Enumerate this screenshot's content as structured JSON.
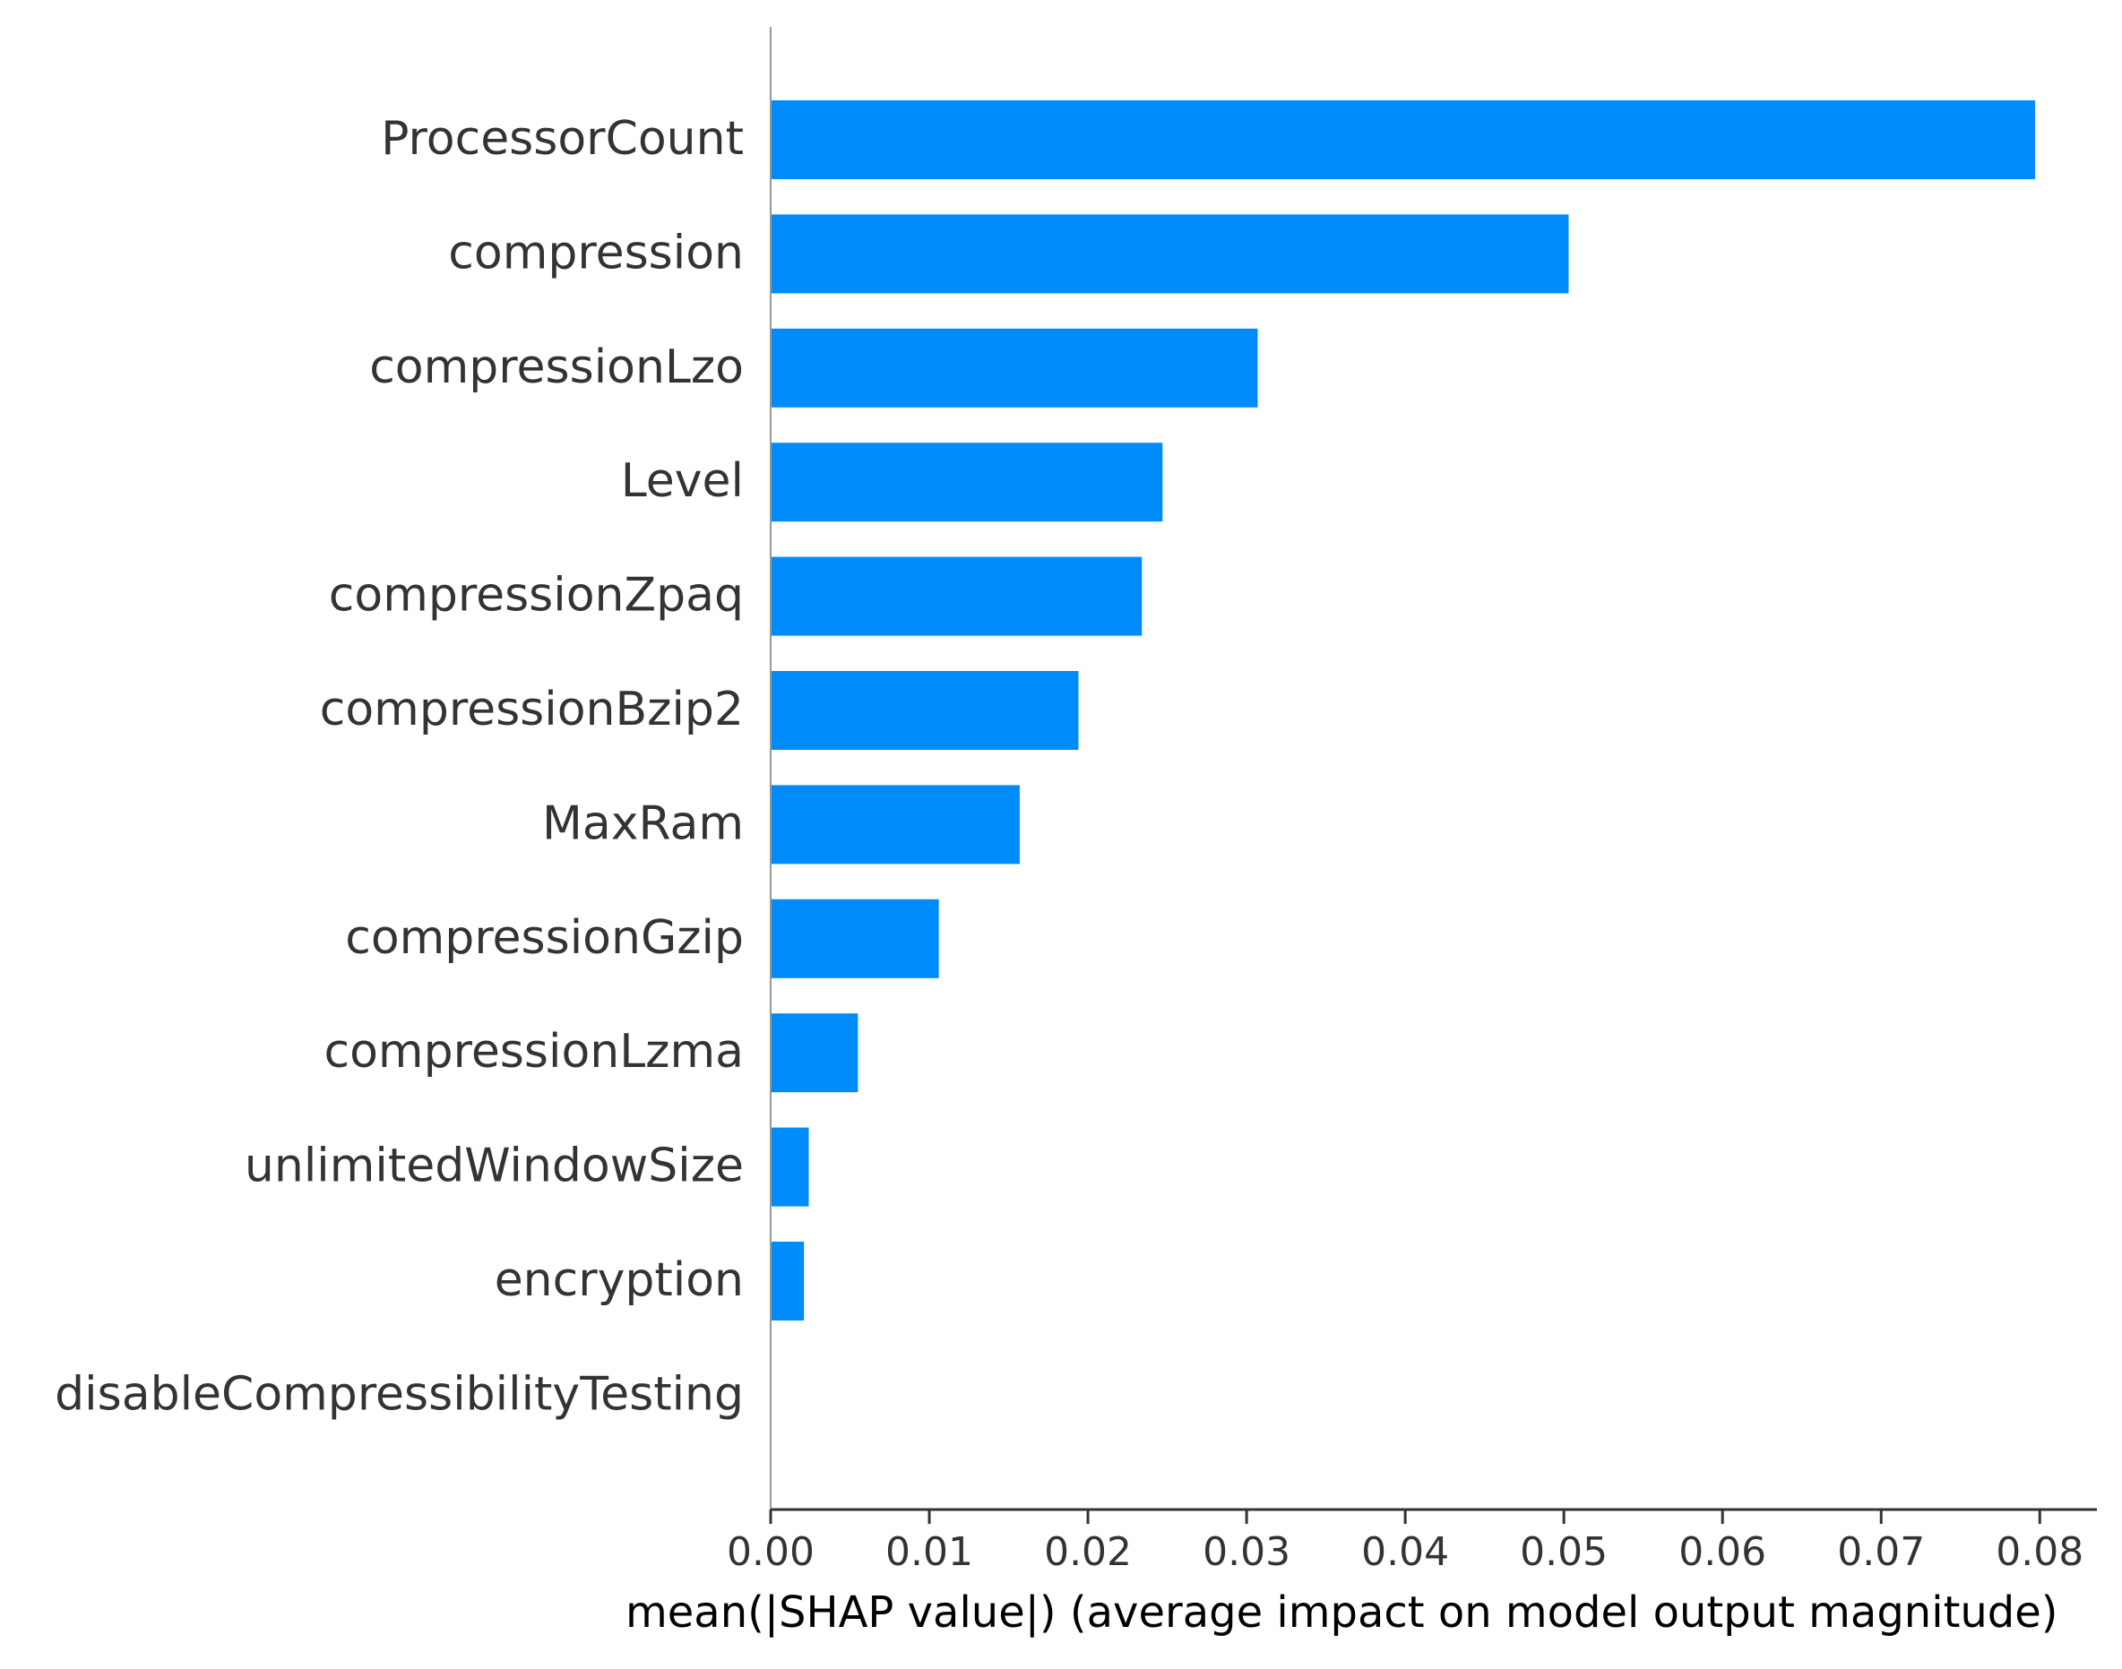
{
  "chart_data": {
    "type": "bar",
    "orientation": "horizontal",
    "title": "",
    "xlabel": "mean(|SHAP value|) (average impact on model output magnitude)",
    "ylabel": "",
    "xlim": [
      0,
      0.0836
    ],
    "x_ticks": [
      "0.00",
      "0.01",
      "0.02",
      "0.03",
      "0.04",
      "0.05",
      "0.06",
      "0.07",
      "0.08"
    ],
    "x_tick_values": [
      0,
      0.01,
      0.02,
      0.03,
      0.04,
      0.05,
      0.06,
      0.07,
      0.08
    ],
    "grid": false,
    "bar_color": "#008bfb",
    "text_color": "#333333",
    "categories": [
      "ProcessorCount",
      "compression",
      "compressionLzo",
      "Level",
      "compressionZpaq",
      "compressionBzip2",
      "MaxRam",
      "compressionGzip",
      "compressionLzma",
      "unlimitedWindowSize",
      "encryption",
      "disableCompressibilityTesting"
    ],
    "values": [
      0.0797,
      0.0503,
      0.0307,
      0.0247,
      0.0234,
      0.0194,
      0.0157,
      0.0106,
      0.0055,
      0.0024,
      0.0021,
      0.0
    ]
  }
}
